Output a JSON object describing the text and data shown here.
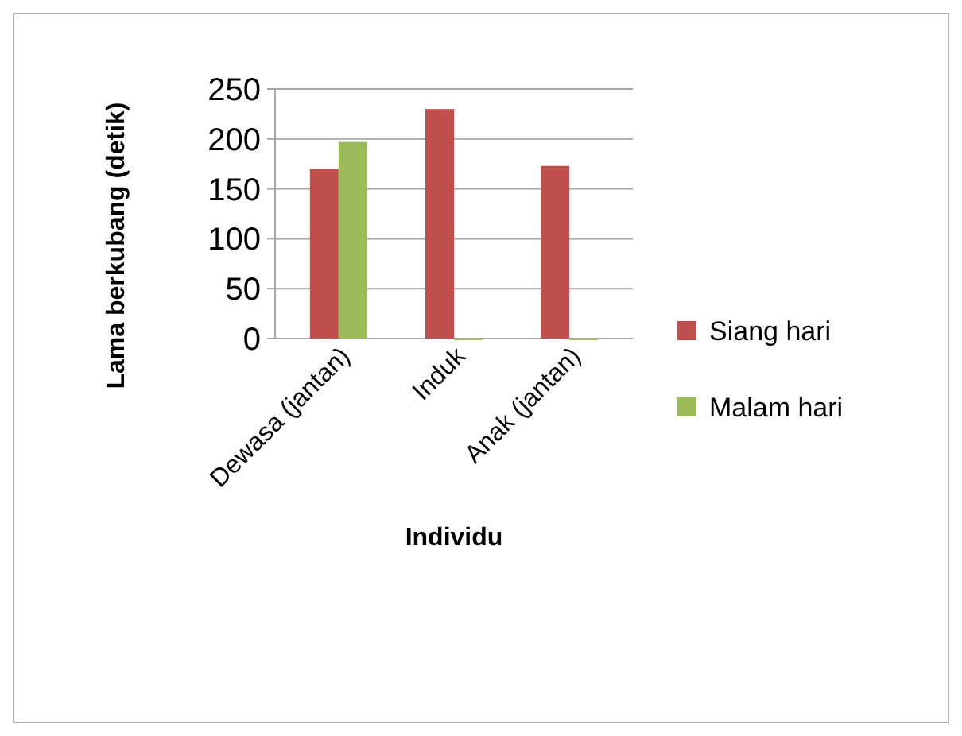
{
  "chart_data": {
    "type": "bar",
    "categories": [
      "Dewasa (jantan)",
      "Induk",
      "Anak  (jantan)"
    ],
    "series": [
      {
        "name": "Siang hari",
        "color": "#c0504d",
        "values": [
          170,
          230,
          173
        ]
      },
      {
        "name": "Malam hari",
        "color": "#9bbb59",
        "values": [
          197,
          0,
          0
        ]
      }
    ],
    "xlabel": "Individu",
    "ylabel": "Lama berkubang (detik)",
    "ylim": [
      0,
      250
    ],
    "yticks": [
      0,
      50,
      100,
      150,
      200,
      250
    ],
    "grid": "y",
    "legend": "right"
  }
}
